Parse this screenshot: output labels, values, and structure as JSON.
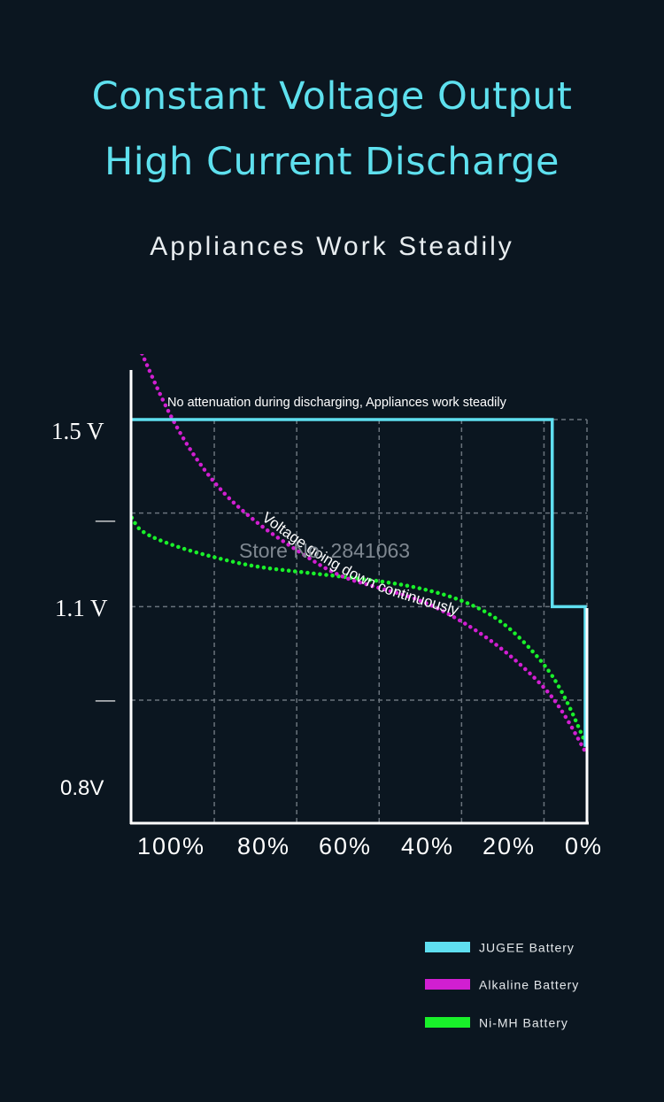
{
  "header": {
    "title_line1": "Constant Voltage Output",
    "title_line2": "High Current Discharge",
    "subtitle": "Appliances Work Steadily"
  },
  "watermark": "Store No: 2841063",
  "chart_data": {
    "type": "line",
    "top_annotation": "No attenuation during discharging, Appliances work steadily",
    "curve_annotation": "Voltage going down continuously",
    "y_tick_labels": [
      "1.5 V",
      "—",
      "1.1  V",
      "—",
      "0.8V"
    ],
    "x_tick_labels": [
      "100%",
      "80%",
      "60%",
      "40%",
      "20%",
      "0%"
    ],
    "colors": {
      "jugee": "#5fdff0",
      "alkaline": "#d11fd1",
      "nimh": "#19f02a",
      "axis": "#ffffff",
      "grid": "#6a737c"
    },
    "series": [
      {
        "name": "JUGEE Battery",
        "style": "solid",
        "points": [
          [
            110,
            1.5
          ],
          [
            8,
            1.5
          ],
          [
            8,
            1.1
          ],
          [
            0,
            1.1
          ],
          [
            0,
            0.8
          ]
        ]
      },
      {
        "name": "Alkaline Battery",
        "style": "dotted",
        "points": [
          [
            110,
            1.69
          ],
          [
            100,
            1.49
          ],
          [
            90,
            1.36
          ],
          [
            80,
            1.28
          ],
          [
            70,
            1.22
          ],
          [
            60,
            1.165
          ],
          [
            50,
            1.14
          ],
          [
            40,
            1.115
          ],
          [
            30,
            1.07
          ],
          [
            20,
            1.01
          ],
          [
            10,
            0.93
          ],
          [
            5,
            0.87
          ],
          [
            0,
            0.79
          ]
        ]
      },
      {
        "name": "Ni-MH Battery",
        "style": "dotted",
        "points": [
          [
            110,
            1.29
          ],
          [
            108,
            1.26
          ],
          [
            100,
            1.23
          ],
          [
            90,
            1.205
          ],
          [
            80,
            1.185
          ],
          [
            70,
            1.175
          ],
          [
            60,
            1.165
          ],
          [
            50,
            1.155
          ],
          [
            40,
            1.14
          ],
          [
            30,
            1.115
          ],
          [
            20,
            1.07
          ],
          [
            10,
            0.98
          ],
          [
            5,
            0.91
          ],
          [
            0,
            0.81
          ]
        ]
      }
    ]
  }
}
